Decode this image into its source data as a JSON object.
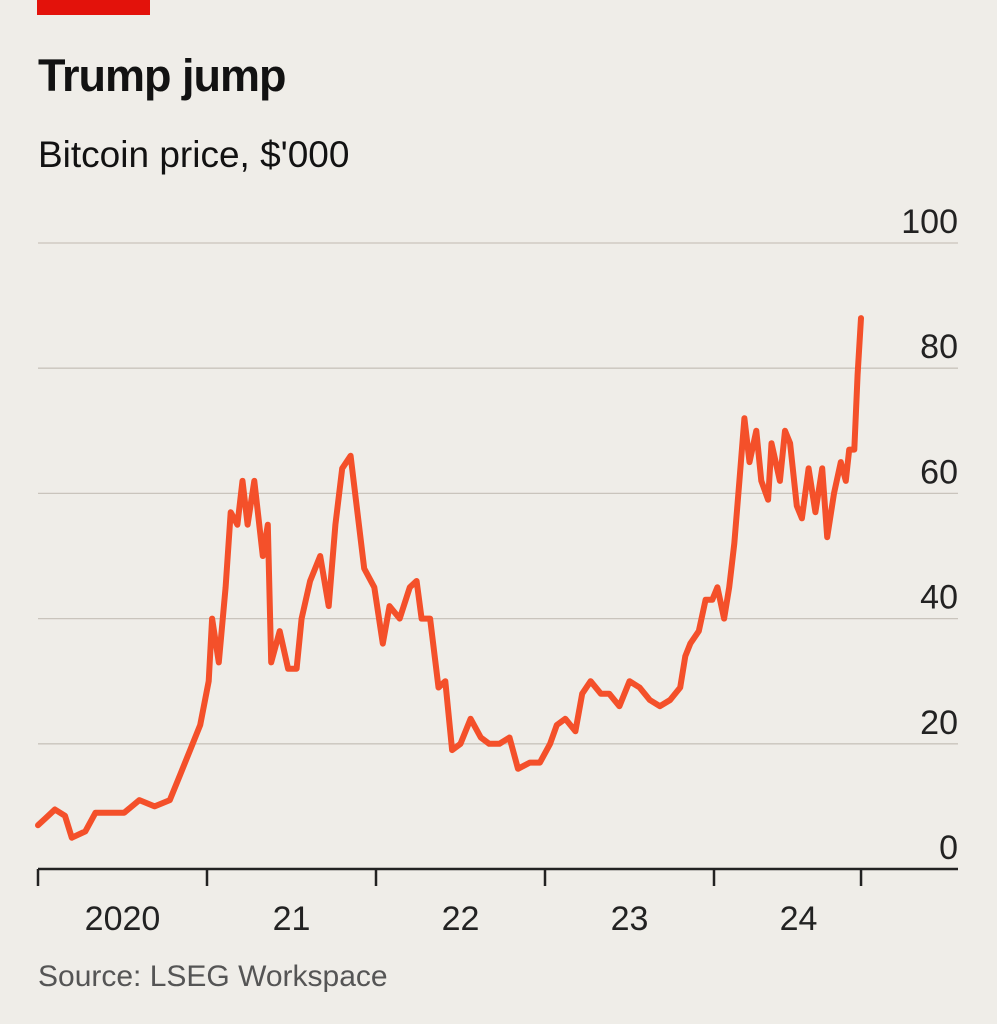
{
  "brand_color": "#e3120b",
  "chart_data": {
    "type": "line",
    "title": "Trump jump",
    "subtitle": "Bitcoin price, $'000",
    "source": "Source: LSEG Workspace",
    "xlabel": "",
    "ylabel": "Bitcoin price, $'000",
    "ylim": [
      0,
      100
    ],
    "xlim": [
      2020,
      2025.44
    ],
    "yticks": [
      0,
      20,
      40,
      60,
      80,
      100
    ],
    "ytick_labels": [
      "0",
      "20",
      "40",
      "60",
      "80",
      "100"
    ],
    "xticks": [
      2020,
      2021,
      2022,
      2023,
      2024,
      2025
    ],
    "xtick_labels": [
      "2020",
      "21",
      "22",
      "23",
      "24"
    ],
    "grid": true,
    "series": [
      {
        "name": "Bitcoin price",
        "color": "#f4502a",
        "x": [
          2020.0,
          2020.04,
          2020.1,
          2020.16,
          2020.2,
          2020.28,
          2020.34,
          2020.43,
          2020.51,
          2020.6,
          2020.69,
          2020.78,
          2020.84,
          2020.9,
          2020.96,
          2021.01,
          2021.03,
          2021.07,
          2021.11,
          2021.14,
          2021.18,
          2021.21,
          2021.24,
          2021.28,
          2021.33,
          2021.36,
          2021.38,
          2021.43,
          2021.48,
          2021.53,
          2021.56,
          2021.61,
          2021.67,
          2021.72,
          2021.76,
          2021.8,
          2021.85,
          2021.89,
          2021.93,
          2021.99,
          2022.04,
          2022.08,
          2022.14,
          2022.2,
          2022.24,
          2022.27,
          2022.32,
          2022.37,
          2022.41,
          2022.45,
          2022.5,
          2022.56,
          2022.62,
          2022.67,
          2022.73,
          2022.79,
          2022.84,
          2022.91,
          2022.97,
          2023.03,
          2023.07,
          2023.12,
          2023.18,
          2023.22,
          2023.27,
          2023.33,
          2023.38,
          2023.44,
          2023.5,
          2023.56,
          2023.62,
          2023.68,
          2023.74,
          2023.8,
          2023.83,
          2023.86,
          2023.91,
          2023.95,
          2023.99,
          2024.02,
          2024.06,
          2024.09,
          2024.12,
          2024.15,
          2024.18,
          2024.21,
          2024.25,
          2024.28,
          2024.32,
          2024.34,
          2024.39,
          2024.42,
          2024.45,
          2024.49,
          2024.52,
          2024.56,
          2024.6,
          2024.64,
          2024.67,
          2024.71,
          2024.75,
          2024.78,
          2024.8,
          2024.83,
          2024.85,
          2024.87
        ],
        "values": [
          7,
          8,
          9.5,
          8.5,
          5,
          6,
          9,
          9,
          9,
          11,
          10,
          11,
          15,
          19,
          23,
          30,
          40,
          33,
          45,
          57,
          55,
          62,
          55,
          62,
          50,
          55,
          33,
          38,
          32,
          32,
          40,
          46,
          50,
          42,
          55,
          64,
          66,
          57,
          48,
          45,
          36,
          42,
          40,
          45,
          46,
          40,
          40,
          29,
          30,
          19,
          20,
          24,
          21,
          20,
          20,
          21,
          16,
          17,
          17,
          20,
          23,
          24,
          22,
          28,
          30,
          28,
          28,
          26,
          30,
          29,
          27,
          26,
          27,
          29,
          34,
          36,
          38,
          43,
          43,
          45,
          40,
          45,
          52,
          62,
          72,
          65,
          70,
          62,
          59,
          68,
          62,
          70,
          68,
          58,
          56,
          64,
          57,
          64,
          53,
          60,
          65,
          62,
          67,
          67,
          79,
          88
        ]
      }
    ]
  }
}
